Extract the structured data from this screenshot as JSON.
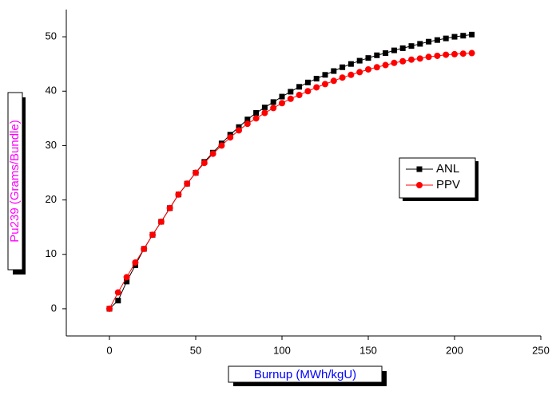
{
  "chart_data": {
    "type": "line",
    "x_label": "Burnup (MWh/kgU)",
    "y_label": "Pu239 (Grams/Bundle)",
    "x": [
      0,
      5,
      10,
      15,
      20,
      25,
      30,
      35,
      40,
      45,
      50,
      55,
      60,
      65,
      70,
      75,
      80,
      85,
      90,
      95,
      100,
      105,
      110,
      115,
      120,
      125,
      130,
      135,
      140,
      145,
      150,
      155,
      160,
      165,
      170,
      175,
      180,
      185,
      190,
      195,
      200,
      205,
      210
    ],
    "series": [
      {
        "name": "ANL",
        "color": "#000000",
        "marker": "square",
        "values": [
          0,
          1.5,
          5,
          8,
          11,
          13.6,
          16,
          18.5,
          21,
          23,
          25,
          27,
          28.7,
          30.4,
          32,
          33.4,
          34.8,
          36,
          37,
          38,
          39,
          39.9,
          40.8,
          41.6,
          42.3,
          43,
          43.7,
          44.4,
          45,
          45.6,
          46.1,
          46.6,
          47,
          47.5,
          47.9,
          48.3,
          48.7,
          49.1,
          49.4,
          49.7,
          50,
          50.2,
          50.4
        ]
      },
      {
        "name": "PPV",
        "color": "#ff0000",
        "marker": "circle",
        "values": [
          0,
          3,
          5.8,
          8.5,
          11,
          13.6,
          16,
          18.5,
          21,
          23,
          25,
          26.8,
          28.5,
          30,
          31.5,
          32.8,
          34,
          35,
          36,
          36.9,
          37.8,
          38.6,
          39.3,
          40,
          40.7,
          41.3,
          41.9,
          42.5,
          43,
          43.5,
          44,
          44.4,
          44.8,
          45.2,
          45.5,
          45.8,
          46,
          46.3,
          46.5,
          46.7,
          46.8,
          46.9,
          47
        ]
      }
    ],
    "xlim": [
      -25,
      250
    ],
    "xticks": [
      0,
      50,
      100,
      150,
      200,
      250
    ],
    "ylim": [
      -5,
      55
    ],
    "yticks": [
      0,
      10,
      20,
      30,
      40,
      50
    ],
    "legend": "right"
  }
}
